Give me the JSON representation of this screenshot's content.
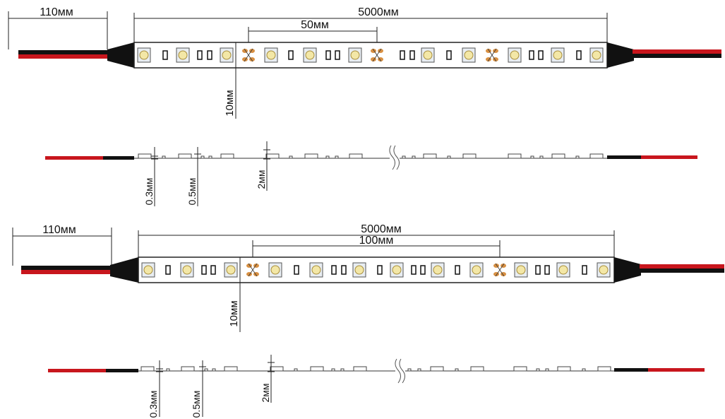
{
  "diagrams": [
    {
      "lead_length": "110мм",
      "strip_length": "5000мм",
      "cut_interval": "50мм",
      "strip_width": "10мм",
      "profile": {
        "base_thickness": "0.3мм",
        "component_height": "0.5мм",
        "total_thickness": "2мм"
      }
    },
    {
      "lead_length": "110мм",
      "strip_length": "5000мм",
      "cut_interval": "100мм",
      "strip_width": "10мм",
      "profile": {
        "base_thickness": "0.3мм",
        "component_height": "0.5мм",
        "total_thickness": "2мм"
      }
    }
  ],
  "colors": {
    "wire_red": "#c8161d",
    "wire_black": "#111111",
    "strip_border": "#222222",
    "led_body": "#f3e7a6",
    "led_pad": "#e8edf2",
    "cut_pad": "#d89043"
  },
  "icons": [
    "led-chip-icon",
    "resistor-icon",
    "solder-pad-icon",
    "break-mark-icon"
  ]
}
